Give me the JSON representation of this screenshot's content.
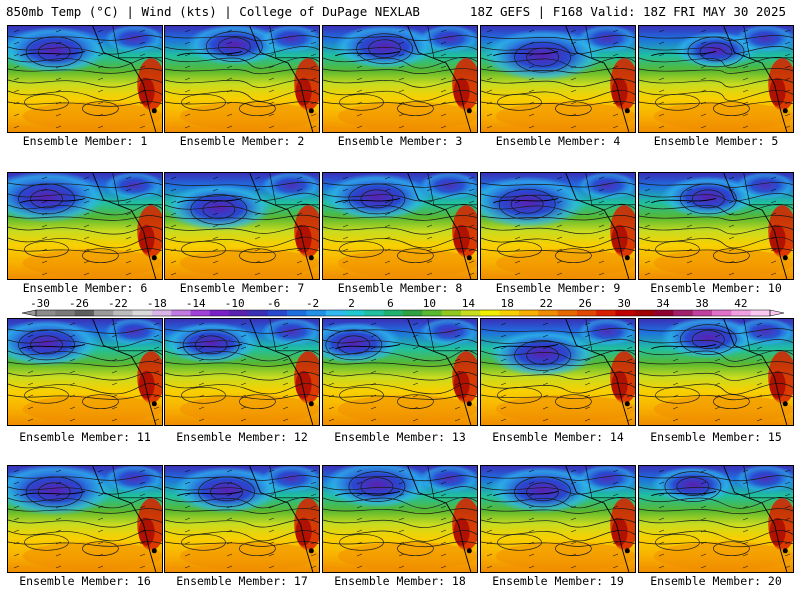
{
  "header": {
    "left": "850mb Temp (°C) | Wind (kts) | College of DuPage NEXLAB",
    "right": "18Z GEFS | F168 Valid: 18Z FRI MAY 30 2025"
  },
  "caption_prefix": "Ensemble Member:",
  "members": [
    {
      "num": "1",
      "cold_lobe": [
        0.3,
        0.15
      ],
      "depth": 0.9
    },
    {
      "num": "2",
      "cold_lobe": [
        0.45,
        0.1
      ],
      "depth": 0.8
    },
    {
      "num": "3",
      "cold_lobe": [
        0.4,
        0.12
      ],
      "depth": 0.85
    },
    {
      "num": "4",
      "cold_lobe": [
        0.4,
        0.2
      ],
      "depth": 1.0
    },
    {
      "num": "5",
      "cold_lobe": [
        0.5,
        0.15
      ],
      "depth": 0.7
    },
    {
      "num": "6",
      "cold_lobe": [
        0.25,
        0.15
      ],
      "depth": 1.0
    },
    {
      "num": "7",
      "cold_lobe": [
        0.35,
        0.25
      ],
      "depth": 0.9
    },
    {
      "num": "8",
      "cold_lobe": [
        0.35,
        0.15
      ],
      "depth": 0.9
    },
    {
      "num": "9",
      "cold_lobe": [
        0.3,
        0.2
      ],
      "depth": 1.0
    },
    {
      "num": "10",
      "cold_lobe": [
        0.45,
        0.15
      ],
      "depth": 0.8
    },
    {
      "num": "11",
      "cold_lobe": [
        0.25,
        0.15
      ],
      "depth": 0.9
    },
    {
      "num": "12",
      "cold_lobe": [
        0.3,
        0.15
      ],
      "depth": 0.8
    },
    {
      "num": "13",
      "cold_lobe": [
        0.2,
        0.15
      ],
      "depth": 0.8
    },
    {
      "num": "14",
      "cold_lobe": [
        0.4,
        0.25
      ],
      "depth": 0.9
    },
    {
      "num": "15",
      "cold_lobe": [
        0.45,
        0.1
      ],
      "depth": 0.8
    },
    {
      "num": "16",
      "cold_lobe": [
        0.3,
        0.15
      ],
      "depth": 1.0
    },
    {
      "num": "17",
      "cold_lobe": [
        0.4,
        0.15
      ],
      "depth": 0.9
    },
    {
      "num": "18",
      "cold_lobe": [
        0.35,
        0.1
      ],
      "depth": 0.9
    },
    {
      "num": "19",
      "cold_lobe": [
        0.4,
        0.15
      ],
      "depth": 0.9
    },
    {
      "num": "20",
      "cold_lobe": [
        0.35,
        0.1
      ],
      "depth": 0.7
    }
  ],
  "colorbar": {
    "labels": [
      "-30",
      "-26",
      "-22",
      "-18",
      "-14",
      "-10",
      "-6",
      "-2",
      "2",
      "6",
      "10",
      "14",
      "18",
      "22",
      "26",
      "30",
      "34",
      "38",
      "42"
    ],
    "colors": [
      "#8c8c8c",
      "#7a7a7a",
      "#5e5e5e",
      "#9a9a9a",
      "#bcbcbc",
      "#d9d9d9",
      "#d8b4e8",
      "#c07ae0",
      "#a040d8",
      "#7a20c8",
      "#5a20b0",
      "#3a30b8",
      "#2848d0",
      "#1f6ee0",
      "#2090e8",
      "#30b8f0",
      "#20c8d0",
      "#20c0a0",
      "#20b070",
      "#30a040",
      "#58b830",
      "#90c820",
      "#c8dc20",
      "#f0f000",
      "#f8d000",
      "#f8b000",
      "#f08c00",
      "#e86800",
      "#e04800",
      "#d82000",
      "#c00000",
      "#a00000",
      "#900030",
      "#a0206a",
      "#c040a0",
      "#e070c8",
      "#f0a0e0",
      "#f8c8f0"
    ]
  }
}
